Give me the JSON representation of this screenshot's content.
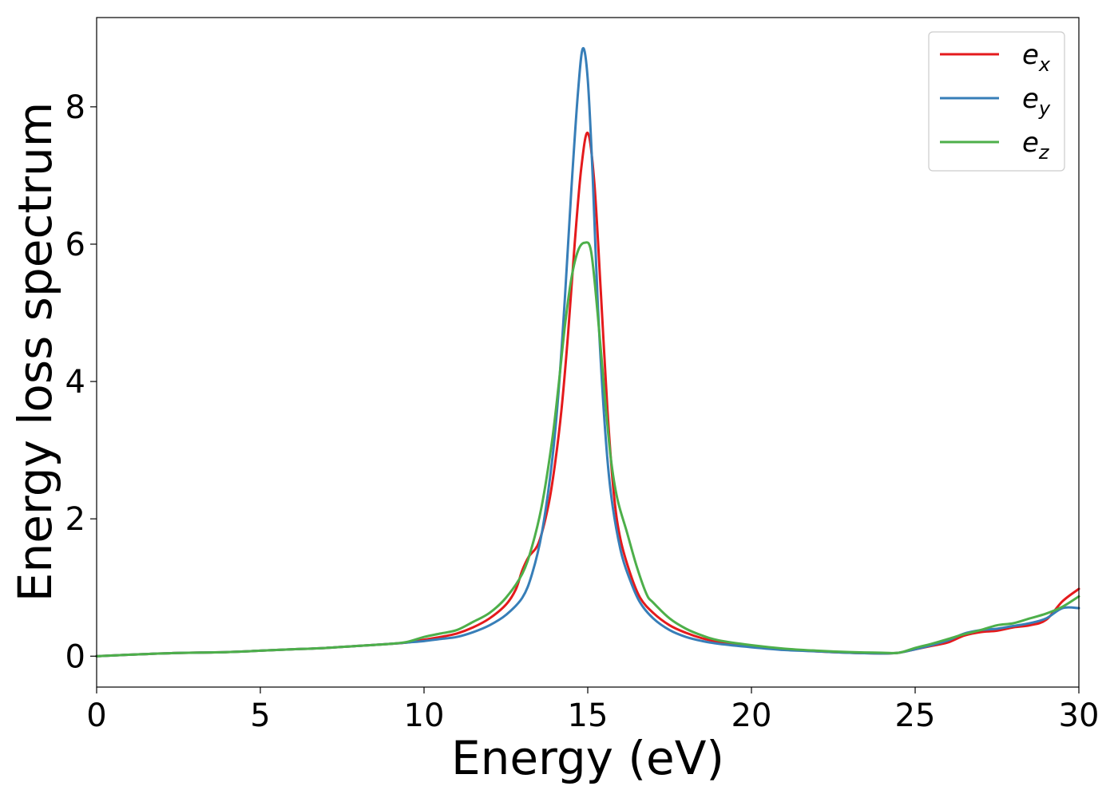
{
  "chart_data": {
    "type": "line",
    "xlabel": "Energy (eV)",
    "ylabel": "Energy loss spectrum",
    "xlim": [
      0,
      30
    ],
    "ylim": [
      -0.45,
      9.3
    ],
    "xticks": [
      0,
      5,
      10,
      15,
      20,
      25,
      30
    ],
    "yticks": [
      0,
      2,
      4,
      6,
      8
    ],
    "grid": false,
    "legend_position": "top-right",
    "series": [
      {
        "name": "e",
        "sub": "x",
        "color": "#e41a1c",
        "points": [
          [
            0,
            0
          ],
          [
            2,
            0.04
          ],
          [
            4,
            0.06
          ],
          [
            5,
            0.08
          ],
          [
            6,
            0.1
          ],
          [
            7,
            0.12
          ],
          [
            8,
            0.15
          ],
          [
            9,
            0.18
          ],
          [
            9.5,
            0.2
          ],
          [
            10,
            0.24
          ],
          [
            10.5,
            0.28
          ],
          [
            11,
            0.33
          ],
          [
            11.5,
            0.42
          ],
          [
            12,
            0.55
          ],
          [
            12.5,
            0.75
          ],
          [
            12.8,
            0.97
          ],
          [
            13,
            1.25
          ],
          [
            13.2,
            1.45
          ],
          [
            13.5,
            1.65
          ],
          [
            13.8,
            2.2
          ],
          [
            14,
            2.8
          ],
          [
            14.2,
            3.6
          ],
          [
            14.4,
            4.7
          ],
          [
            14.6,
            6.0
          ],
          [
            14.8,
            7.1
          ],
          [
            15,
            7.62
          ],
          [
            15.2,
            6.9
          ],
          [
            15.4,
            5.3
          ],
          [
            15.6,
            3.6
          ],
          [
            15.8,
            2.35
          ],
          [
            16,
            1.7
          ],
          [
            16.3,
            1.2
          ],
          [
            16.6,
            0.85
          ],
          [
            17,
            0.63
          ],
          [
            17.5,
            0.45
          ],
          [
            18,
            0.34
          ],
          [
            18.5,
            0.26
          ],
          [
            19,
            0.21
          ],
          [
            20,
            0.15
          ],
          [
            21,
            0.1
          ],
          [
            22,
            0.07
          ],
          [
            23,
            0.05
          ],
          [
            24,
            0.04
          ],
          [
            24.5,
            0.05
          ],
          [
            25,
            0.1
          ],
          [
            25.5,
            0.15
          ],
          [
            26,
            0.2
          ],
          [
            26.5,
            0.3
          ],
          [
            27,
            0.35
          ],
          [
            27.5,
            0.37
          ],
          [
            28,
            0.42
          ],
          [
            28.5,
            0.45
          ],
          [
            29,
            0.53
          ],
          [
            29.5,
            0.8
          ],
          [
            30,
            0.98
          ]
        ]
      },
      {
        "name": "e",
        "sub": "y",
        "color": "#377eb8",
        "points": [
          [
            0,
            0
          ],
          [
            2,
            0.04
          ],
          [
            4,
            0.06
          ],
          [
            5,
            0.08
          ],
          [
            6,
            0.1
          ],
          [
            7,
            0.12
          ],
          [
            8,
            0.15
          ],
          [
            9,
            0.18
          ],
          [
            9.5,
            0.2
          ],
          [
            10,
            0.22
          ],
          [
            10.5,
            0.25
          ],
          [
            11,
            0.28
          ],
          [
            11.5,
            0.35
          ],
          [
            12,
            0.45
          ],
          [
            12.5,
            0.6
          ],
          [
            13,
            0.85
          ],
          [
            13.3,
            1.2
          ],
          [
            13.6,
            1.8
          ],
          [
            13.9,
            2.8
          ],
          [
            14.1,
            3.8
          ],
          [
            14.3,
            5.2
          ],
          [
            14.5,
            6.8
          ],
          [
            14.7,
            8.2
          ],
          [
            14.85,
            8.85
          ],
          [
            15,
            8.4
          ],
          [
            15.15,
            7.0
          ],
          [
            15.3,
            5.2
          ],
          [
            15.5,
            3.5
          ],
          [
            15.7,
            2.4
          ],
          [
            16,
            1.55
          ],
          [
            16.3,
            1.1
          ],
          [
            16.6,
            0.78
          ],
          [
            17,
            0.55
          ],
          [
            17.5,
            0.38
          ],
          [
            18,
            0.28
          ],
          [
            18.5,
            0.22
          ],
          [
            19,
            0.18
          ],
          [
            20,
            0.13
          ],
          [
            21,
            0.09
          ],
          [
            22,
            0.07
          ],
          [
            23,
            0.05
          ],
          [
            24,
            0.04
          ],
          [
            24.5,
            0.05
          ],
          [
            25,
            0.1
          ],
          [
            25.5,
            0.16
          ],
          [
            26,
            0.23
          ],
          [
            26.5,
            0.33
          ],
          [
            27,
            0.38
          ],
          [
            27.5,
            0.4
          ],
          [
            28,
            0.44
          ],
          [
            28.5,
            0.48
          ],
          [
            29,
            0.55
          ],
          [
            29.5,
            0.7
          ],
          [
            30,
            0.7
          ]
        ]
      },
      {
        "name": "e",
        "sub": "z",
        "color": "#4daf4a",
        "points": [
          [
            0,
            0
          ],
          [
            2,
            0.04
          ],
          [
            4,
            0.06
          ],
          [
            5,
            0.08
          ],
          [
            6,
            0.1
          ],
          [
            7,
            0.12
          ],
          [
            8,
            0.15
          ],
          [
            9,
            0.18
          ],
          [
            9.5,
            0.21
          ],
          [
            10,
            0.28
          ],
          [
            10.5,
            0.33
          ],
          [
            11,
            0.38
          ],
          [
            11.5,
            0.5
          ],
          [
            12,
            0.63
          ],
          [
            12.5,
            0.85
          ],
          [
            13,
            1.2
          ],
          [
            13.3,
            1.6
          ],
          [
            13.6,
            2.2
          ],
          [
            13.9,
            3.1
          ],
          [
            14.1,
            3.9
          ],
          [
            14.3,
            4.8
          ],
          [
            14.5,
            5.5
          ],
          [
            14.7,
            5.9
          ],
          [
            14.9,
            6.02
          ],
          [
            15.1,
            5.9
          ],
          [
            15.3,
            5.0
          ],
          [
            15.5,
            3.9
          ],
          [
            15.7,
            2.9
          ],
          [
            15.9,
            2.3
          ],
          [
            16.2,
            1.8
          ],
          [
            16.5,
            1.3
          ],
          [
            16.8,
            0.9
          ],
          [
            17,
            0.78
          ],
          [
            17.5,
            0.55
          ],
          [
            18,
            0.4
          ],
          [
            18.5,
            0.3
          ],
          [
            19,
            0.23
          ],
          [
            20,
            0.16
          ],
          [
            21,
            0.11
          ],
          [
            22,
            0.08
          ],
          [
            23,
            0.06
          ],
          [
            24,
            0.05
          ],
          [
            24.5,
            0.05
          ],
          [
            25,
            0.12
          ],
          [
            25.5,
            0.18
          ],
          [
            26,
            0.25
          ],
          [
            26.5,
            0.32
          ],
          [
            27,
            0.38
          ],
          [
            27.5,
            0.45
          ],
          [
            28,
            0.48
          ],
          [
            28.5,
            0.55
          ],
          [
            29,
            0.62
          ],
          [
            29.5,
            0.72
          ],
          [
            30,
            0.87
          ]
        ]
      }
    ]
  }
}
